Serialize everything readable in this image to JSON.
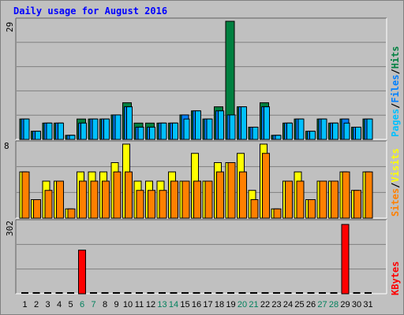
{
  "title": "Daily usage for August 2016",
  "colors": {
    "background": "#c0c0c0",
    "hits": "#008040",
    "files": "#0080ff",
    "pages": "#00c0ff",
    "visits": "#ffff00",
    "sites": "#ff8000",
    "kbytes": "#ff0000",
    "weekend_label": "#00805c",
    "title": "#0000ff"
  },
  "legend": {
    "pages": "Pages",
    "files": "Files",
    "hits": "Hits",
    "sites": "Sites",
    "visits": "Visits",
    "kbytes": "KBytes",
    "sep": "/"
  },
  "chart_data": [
    {
      "type": "bar",
      "panel": "top",
      "y_max_label": "29",
      "ylim": [
        0,
        29
      ],
      "x": [
        1,
        2,
        3,
        4,
        5,
        6,
        7,
        8,
        9,
        10,
        11,
        12,
        13,
        14,
        15,
        16,
        17,
        18,
        19,
        20,
        21,
        22,
        23,
        24,
        25,
        26,
        27,
        28,
        29,
        30,
        31
      ],
      "series": [
        {
          "name": "Hits",
          "values": [
            5,
            2,
            4,
            4,
            1,
            5,
            5,
            5,
            6,
            9,
            4,
            4,
            4,
            4,
            6,
            7,
            5,
            8,
            29,
            8,
            3,
            9,
            1,
            4,
            5,
            2,
            5,
            4,
            5,
            3,
            5
          ]
        },
        {
          "name": "Files",
          "values": [
            5,
            2,
            4,
            4,
            1,
            4,
            5,
            5,
            6,
            8,
            3,
            3,
            4,
            4,
            6,
            7,
            5,
            7,
            6,
            8,
            3,
            8,
            1,
            4,
            5,
            2,
            5,
            4,
            5,
            3,
            5
          ]
        },
        {
          "name": "Pages",
          "values": [
            5,
            2,
            4,
            4,
            1,
            4,
            5,
            5,
            6,
            8,
            3,
            3,
            4,
            4,
            5,
            7,
            5,
            7,
            6,
            8,
            3,
            8,
            1,
            4,
            5,
            2,
            5,
            4,
            4,
            3,
            5
          ]
        }
      ]
    },
    {
      "type": "bar",
      "panel": "middle",
      "y_max_label": "8",
      "ylim": [
        0,
        8
      ],
      "x": [
        1,
        2,
        3,
        4,
        5,
        6,
        7,
        8,
        9,
        10,
        11,
        12,
        13,
        14,
        15,
        16,
        17,
        18,
        19,
        20,
        21,
        22,
        23,
        24,
        25,
        26,
        27,
        28,
        29,
        30,
        31
      ],
      "series": [
        {
          "name": "Visits",
          "values": [
            5,
            2,
            4,
            4,
            1,
            5,
            5,
            5,
            6,
            8,
            4,
            4,
            4,
            5,
            4,
            7,
            4,
            6,
            6,
            7,
            3,
            8,
            1,
            4,
            5,
            2,
            4,
            4,
            5,
            3,
            5
          ]
        },
        {
          "name": "Sites",
          "values": [
            5,
            2,
            3,
            4,
            1,
            4,
            4,
            4,
            5,
            5,
            3,
            3,
            3,
            4,
            4,
            4,
            4,
            5,
            6,
            5,
            2,
            7,
            1,
            4,
            4,
            2,
            4,
            4,
            5,
            3,
            5
          ]
        }
      ]
    },
    {
      "type": "bar",
      "panel": "bottom",
      "y_max_label": "302",
      "ylim": [
        0,
        302
      ],
      "x": [
        1,
        2,
        3,
        4,
        5,
        6,
        7,
        8,
        9,
        10,
        11,
        12,
        13,
        14,
        15,
        16,
        17,
        18,
        19,
        20,
        21,
        22,
        23,
        24,
        25,
        26,
        27,
        28,
        29,
        30,
        31
      ],
      "series": [
        {
          "name": "KBytes",
          "values": [
            0,
            0,
            0,
            0,
            0,
            190,
            0,
            0,
            0,
            0,
            0,
            0,
            0,
            0,
            0,
            0,
            0,
            0,
            0,
            0,
            0,
            0,
            0,
            0,
            0,
            0,
            0,
            0,
            302,
            0,
            0
          ]
        }
      ]
    }
  ],
  "x_ticks": [
    "1",
    "2",
    "3",
    "4",
    "5",
    "6",
    "7",
    "8",
    "9",
    "10",
    "11",
    "12",
    "13",
    "14",
    "15",
    "16",
    "17",
    "18",
    "19",
    "20",
    "21",
    "22",
    "23",
    "24",
    "25",
    "26",
    "27",
    "28",
    "29",
    "30",
    "31"
  ],
  "weekend_days": [
    "6",
    "7",
    "13",
    "14",
    "20",
    "21",
    "27",
    "28"
  ]
}
